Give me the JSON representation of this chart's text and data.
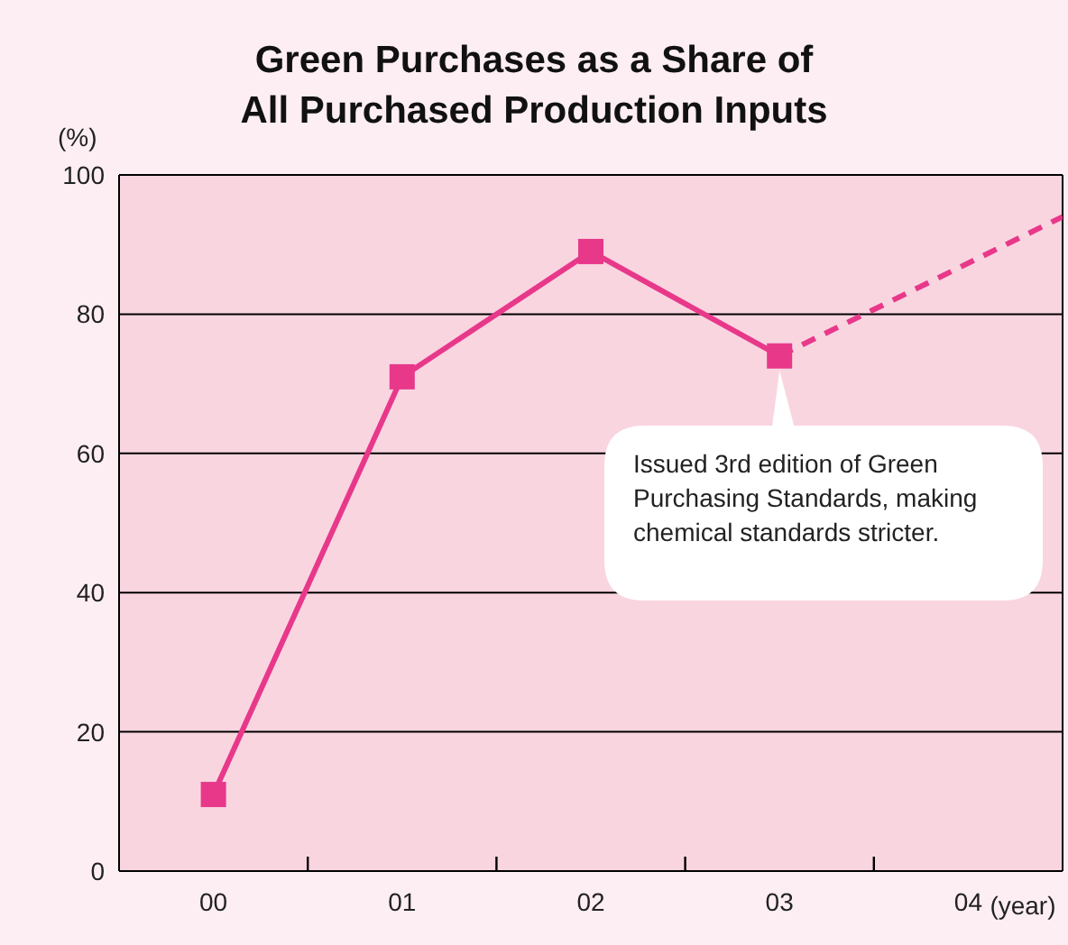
{
  "chart_data": {
    "type": "line",
    "title": "Green Purchases as a Share of\nAll Purchased Production Inputs",
    "ylabel": "(%)",
    "xlabel": "(year)",
    "x": [
      0,
      1,
      2,
      3
    ],
    "series": [
      {
        "color": "#e8388a",
        "values": [
          11,
          71,
          89,
          74
        ],
        "marker": "square",
        "line_style": "solid"
      },
      {
        "color": "#e8388a",
        "x": [
          3,
          4.5
        ],
        "values": [
          74,
          94
        ],
        "marker": "none",
        "line_style": "dashed"
      }
    ],
    "xlim": [
      -0.5,
      4.5
    ],
    "xticks": [
      {
        "value": 0,
        "label": "00"
      },
      {
        "value": 0.5,
        "label": null
      },
      {
        "value": 1,
        "label": "01"
      },
      {
        "value": 1.5,
        "label": null
      },
      {
        "value": 2,
        "label": "02"
      },
      {
        "value": 2.5,
        "label": null
      },
      {
        "value": 3,
        "label": "03"
      },
      {
        "value": 3.5,
        "label": null
      },
      {
        "value": 4,
        "label": "04"
      }
    ],
    "ylim": [
      0,
      100
    ],
    "yticks": [
      0,
      20,
      40,
      60,
      80,
      100
    ],
    "grid": "y",
    "legend": false,
    "annotations": [
      "Issued 3rd edition of Green Purchasing Standards, making chemical standards stricter."
    ]
  }
}
